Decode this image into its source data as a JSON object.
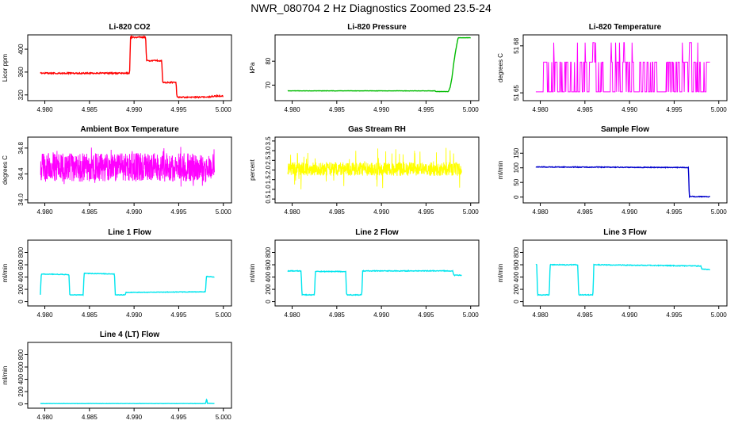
{
  "page": {
    "title": "NWR_080704  2 Hz Diagnostics Zoomed 23.5-24"
  },
  "chart_data": [
    {
      "id": "co2",
      "type": "line",
      "title": "Li-820 CO2",
      "ylabel": "Licor ppm",
      "xlabel": "",
      "xlim": [
        4.979,
        5.0
      ],
      "ylim": [
        310,
        425
      ],
      "xticks": [
        4.98,
        4.985,
        4.99,
        4.995,
        5.0
      ],
      "xtick_labels": [
        "4.980",
        "4.985",
        "4.990",
        "4.995",
        "5.000"
      ],
      "yticks": [
        320,
        360,
        400
      ],
      "ytick_labels": [
        "320",
        "360",
        "400"
      ],
      "color": "#ff0000",
      "series": [
        {
          "name": "CO2",
          "style": "step",
          "noise": 1.2,
          "x": [
            4.9795,
            4.9895,
            4.9896,
            4.9913,
            4.9914,
            4.9931,
            4.9932,
            4.9947,
            4.9948,
            4.998,
            4.9981,
            4.999,
            4.999,
            5.0
          ],
          "y": [
            358,
            358,
            421,
            421,
            380,
            380,
            342,
            342,
            316,
            316,
            316,
            318,
            318,
            318
          ]
        }
      ]
    },
    {
      "id": "pressure",
      "type": "line",
      "title": "Li-820 Pressure",
      "ylabel": "kPa",
      "xlabel": "",
      "xlim": [
        4.979,
        5.0
      ],
      "ylim": [
        63.5,
        91
      ],
      "xticks": [
        4.98,
        4.985,
        4.99,
        4.995,
        5.0
      ],
      "xtick_labels": [
        "4.980",
        "4.985",
        "4.990",
        "4.995",
        "5.000"
      ],
      "yticks": [
        70,
        80
      ],
      "ytick_labels": [
        "70",
        "80"
      ],
      "color": "#00bb00",
      "series": [
        {
          "name": "Pressure",
          "style": "line",
          "noise": 0.05,
          "x": [
            4.9795,
            4.996,
            4.9961,
            4.9975,
            4.9977,
            4.9979,
            4.9981,
            4.9983,
            4.9985,
            4.9986,
            4.999,
            5.0
          ],
          "y": [
            67.6,
            67.6,
            67.3,
            67.3,
            69,
            73,
            79,
            84,
            88,
            89.8,
            89.8,
            89.8
          ]
        }
      ]
    },
    {
      "id": "licor-temp",
      "type": "line",
      "title": "Li-820 Temperature",
      "ylabel": "degrees C",
      "xlabel": "",
      "xlim": [
        4.979,
        5.0
      ],
      "ylim": [
        51.645,
        51.687
      ],
      "xticks": [
        4.98,
        4.985,
        4.99,
        4.995,
        5.0
      ],
      "xtick_labels": [
        "4.980",
        "4.985",
        "4.990",
        "4.995",
        "5.000"
      ],
      "yticks": [
        51.65,
        51.68
      ],
      "ytick_labels": [
        "51 65",
        "51 68"
      ],
      "color": "#ff00ff",
      "series": [
        {
          "name": "Temperature",
          "style": "quantized",
          "x0": 4.9795,
          "x1": 4.999,
          "levels": [
            51.6506,
            51.6696,
            51.6821
          ],
          "seed": 17
        }
      ]
    },
    {
      "id": "ambient-temp",
      "type": "line",
      "title": "Ambient Box Temperature",
      "ylabel": "degrees C",
      "xlabel": "",
      "xlim": [
        4.979,
        5.0
      ],
      "ylim": [
        33.95,
        34.97
      ],
      "xticks": [
        4.98,
        4.985,
        4.99,
        4.995,
        5.0
      ],
      "xtick_labels": [
        "4.980",
        "4.985",
        "4.990",
        "4.995",
        "5.000"
      ],
      "yticks": [
        34.0,
        34.4,
        34.8
      ],
      "ytick_labels": [
        "34.0",
        "34.4",
        "34.8"
      ],
      "color": "#ff00ff",
      "series": [
        {
          "name": "AmbientTemp",
          "style": "noisy",
          "x0": 4.9795,
          "x1": 4.999,
          "mean": 34.5,
          "amp": 0.22,
          "spike": 0.33,
          "seed": 5
        }
      ]
    },
    {
      "id": "rh",
      "type": "line",
      "title": "Gas Stream RH",
      "ylabel": "percent",
      "xlabel": "",
      "xlim": [
        4.979,
        5.0
      ],
      "ylim": [
        0.3,
        3.7
      ],
      "xticks": [
        4.98,
        4.985,
        4.99,
        4.995,
        5.0
      ],
      "xtick_labels": [
        "4.980",
        "4.985",
        "4.990",
        "4.995",
        "5.000"
      ],
      "yticks": [
        0.5,
        1.0,
        1.5,
        2.0,
        2.5,
        3.0,
        3.5
      ],
      "ytick_labels": [
        "0.5",
        "1.0",
        "1.5",
        "2.0",
        "2.5",
        "3.0",
        "3.5"
      ],
      "color": "#ffff00",
      "series": [
        {
          "name": "RH",
          "style": "noisy",
          "x0": 4.9795,
          "x1": 4.999,
          "mean": 2.05,
          "amp": 0.35,
          "spike": 1.1,
          "seed": 9
        }
      ]
    },
    {
      "id": "sample-flow",
      "type": "line",
      "title": "Sample Flow",
      "ylabel": "ml/min",
      "xlabel": "",
      "xlim": [
        4.979,
        5.0
      ],
      "ylim": [
        -20,
        205
      ],
      "xticks": [
        4.98,
        4.985,
        4.99,
        4.995,
        5.0
      ],
      "xtick_labels": [
        "4.980",
        "4.985",
        "4.990",
        "4.995",
        "5.000"
      ],
      "yticks": [
        0,
        50,
        100,
        150
      ],
      "ytick_labels": [
        "0",
        "50",
        "100",
        "150"
      ],
      "color": "#0000cc",
      "series": [
        {
          "name": "SampleFlow",
          "style": "step",
          "noise": 1.2,
          "x": [
            4.9795,
            4.9966,
            4.9967,
            4.999
          ],
          "y": [
            103,
            101,
            2,
            1
          ]
        }
      ]
    },
    {
      "id": "line1",
      "type": "line",
      "title": "Line 1 Flow",
      "ylabel": "ml/min",
      "xlabel": "",
      "xlim": [
        4.979,
        5.0
      ],
      "ylim": [
        -70,
        1000
      ],
      "xticks": [
        4.98,
        4.985,
        4.99,
        4.995,
        5.0
      ],
      "xtick_labels": [
        "4.980",
        "4.985",
        "4.990",
        "4.995",
        "5.000"
      ],
      "yticks": [
        0,
        200,
        400,
        600,
        800
      ],
      "ytick_labels": [
        "0",
        "200",
        "400",
        "600",
        "800"
      ],
      "color": "#00e5ee",
      "series": [
        {
          "name": "Line1",
          "style": "step",
          "noise": 4,
          "x": [
            4.9795,
            4.9796,
            4.9827,
            4.9828,
            4.9843,
            4.9844,
            4.9878,
            4.9879,
            4.989,
            4.9891,
            4.998,
            4.9981,
            4.999
          ],
          "y": [
            110,
            450,
            440,
            110,
            110,
            460,
            450,
            110,
            110,
            150,
            160,
            410,
            400
          ]
        }
      ]
    },
    {
      "id": "line2",
      "type": "line",
      "title": "Line 2 Flow",
      "ylabel": "ml/min",
      "xlabel": "",
      "xlim": [
        4.979,
        5.0
      ],
      "ylim": [
        -70,
        1000
      ],
      "xticks": [
        4.98,
        4.985,
        4.99,
        4.995,
        5.0
      ],
      "xtick_labels": [
        "4.980",
        "4.985",
        "4.990",
        "4.995",
        "5.000"
      ],
      "yticks": [
        0,
        200,
        400,
        600,
        800
      ],
      "ytick_labels": [
        "0",
        "200",
        "400",
        "600",
        "800"
      ],
      "color": "#00e5ee",
      "series": [
        {
          "name": "Line2",
          "style": "step",
          "noise": 6,
          "x": [
            4.9795,
            4.981,
            4.9811,
            4.9825,
            4.9826,
            4.986,
            4.9861,
            4.9878,
            4.9879,
            4.998,
            4.9981,
            4.999
          ],
          "y": [
            500,
            500,
            110,
            110,
            490,
            490,
            110,
            110,
            500,
            500,
            430,
            430
          ]
        }
      ]
    },
    {
      "id": "line3",
      "type": "line",
      "title": "Line 3 Flow",
      "ylabel": "ml/min",
      "xlabel": "",
      "xlim": [
        4.979,
        5.0
      ],
      "ylim": [
        -70,
        1000
      ],
      "xticks": [
        4.98,
        4.985,
        4.99,
        4.995,
        5.0
      ],
      "xtick_labels": [
        "4.980",
        "4.985",
        "4.990",
        "4.995",
        "5.000"
      ],
      "yticks": [
        0,
        200,
        400,
        600,
        800
      ],
      "ytick_labels": [
        "0",
        "200",
        "400",
        "600",
        "800"
      ],
      "color": "#00e5ee",
      "series": [
        {
          "name": "Line3",
          "style": "step",
          "noise": 6,
          "x": [
            4.9795,
            4.9796,
            4.9797,
            4.981,
            4.9811,
            4.9842,
            4.9843,
            4.9859,
            4.986,
            4.998,
            4.9981,
            4.999
          ],
          "y": [
            600,
            600,
            110,
            110,
            600,
            600,
            110,
            110,
            600,
            580,
            530,
            520
          ]
        }
      ]
    },
    {
      "id": "line4",
      "type": "line",
      "title": "Line 4 (LT) Flow",
      "ylabel": "ml/min",
      "xlabel": "",
      "xlim": [
        4.979,
        5.0
      ],
      "ylim": [
        -70,
        1000
      ],
      "xticks": [
        4.98,
        4.985,
        4.99,
        4.995,
        5.0
      ],
      "xtick_labels": [
        "4.980",
        "4.985",
        "4.990",
        "4.995",
        "5.000"
      ],
      "yticks": [
        0,
        200,
        400,
        600,
        800
      ],
      "ytick_labels": [
        "0",
        "200",
        "400",
        "600",
        "800"
      ],
      "color": "#00e5ee",
      "series": [
        {
          "name": "Line4",
          "style": "step",
          "noise": 2,
          "x": [
            4.9795,
            4.998,
            4.9981,
            4.99815,
            4.9982,
            4.999
          ],
          "y": [
            5,
            5,
            60,
            80,
            10,
            5
          ]
        }
      ]
    }
  ]
}
